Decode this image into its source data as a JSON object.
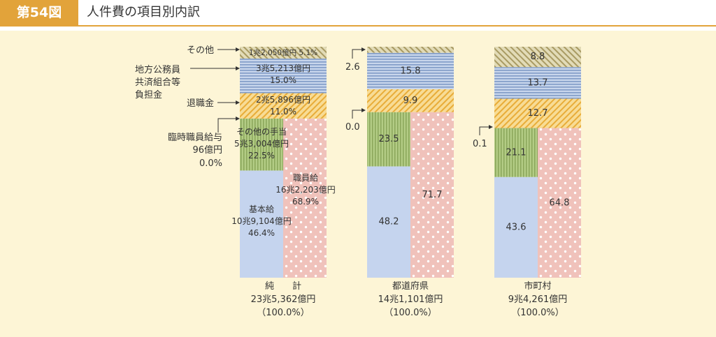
{
  "header": {
    "figure_no": "第54図",
    "title": "人件費の項目別内訳"
  },
  "colors": {
    "accent": "#e2a33a",
    "panel": "#fdf5d6",
    "kihon": "#c5d4ee",
    "shokuinkyu": "#f0c2bb",
    "teate": "#a8c27a",
    "taishoku": "#f5cf77",
    "kyosai": "#b4c6e2",
    "sonota": "#c9bf8f"
  },
  "chart_data": {
    "type": "bar",
    "subtype": "stacked-100-percent",
    "unit": "%",
    "categories": [
      {
        "name": "純　　計",
        "total": "23兆5,362億円",
        "pct": "（100.0%）"
      },
      {
        "name": "都道府県",
        "total": "14兆1,101億円",
        "pct": "（100.0%）"
      },
      {
        "name": "市町村",
        "total": "9兆4,261億円",
        "pct": "（100.0%）"
      }
    ],
    "shokuinkyu": {
      "values": [
        68.9,
        71.7,
        64.8
      ],
      "labels": [
        "",
        "71.7",
        "64.8"
      ],
      "breakdown": {
        "kihon": {
          "values": [
            46.4,
            48.2,
            43.6
          ],
          "labels": [
            "",
            "48.2",
            "43.6"
          ]
        },
        "teate": {
          "values": [
            22.5,
            23.5,
            21.1
          ],
          "labels": [
            "",
            "23.5",
            "21.1"
          ]
        },
        "rinji": {
          "values": [
            0.0,
            0.0,
            0.1
          ]
        }
      }
    },
    "upper_series": [
      {
        "key": "taishoku",
        "values": [
          11.0,
          9.9,
          12.7
        ],
        "labels": [
          "",
          "9.9",
          "12.7"
        ]
      },
      {
        "key": "kyosai",
        "values": [
          15.0,
          15.8,
          13.7
        ],
        "labels": [
          "",
          "15.8",
          "13.7"
        ]
      },
      {
        "key": "sonota",
        "values": [
          5.1,
          2.6,
          8.8
        ],
        "labels": [
          "",
          "",
          "8.8"
        ]
      }
    ],
    "callouts": {
      "rinji_pref": "0.0",
      "rinji_muni": "0.1",
      "sonota_pref": "2.6"
    },
    "total_details": {
      "sonota": "1兆2,050億円  5.1%",
      "kyosai_1": "3兆5,213億円",
      "kyosai_2": "15.0%",
      "taishoku_1": "2兆5,896億円",
      "taishoku_2": "11.0%",
      "teate_1": "その他の手当",
      "teate_2": "5兆3,004億円",
      "teate_3": "22.5%",
      "shokuinkyu_1": "職員給",
      "shokuinkyu_2": "16兆2,203億円",
      "shokuinkyu_3": "68.9%",
      "kihon_1": "基本給",
      "kihon_2": "10兆9,104億円",
      "kihon_3": "46.4%"
    },
    "left_labels": {
      "sonota": "その他",
      "kyosai_1": "地方公務員",
      "kyosai_2": "共済組合等",
      "kyosai_3": "負担金",
      "taishoku": "退職金",
      "rinji_1": "臨時職員給与",
      "rinji_2": "96億円",
      "rinji_3": "0.0%"
    }
  }
}
